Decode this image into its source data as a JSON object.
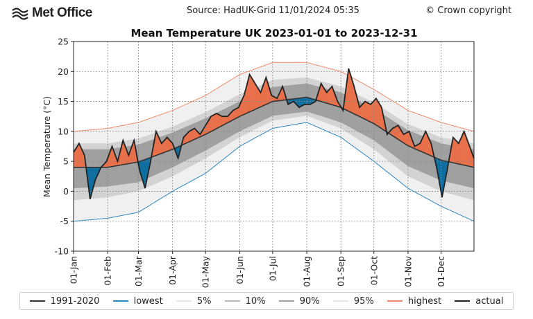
{
  "header": {
    "logo_text": "Met Office",
    "source": "Source: HadUK-Grid 11/01/2024 05:35",
    "copyright": "© Crown copyright"
  },
  "chart_data": {
    "type": "line",
    "title": "Mean Temperature UK 2023-01-01 to 2023-12-31",
    "xlabel": "",
    "ylabel": "Mean Temperature (°C)",
    "ylim": [
      -10,
      25
    ],
    "yticks": [
      -10,
      -5,
      0,
      5,
      10,
      15,
      20,
      25
    ],
    "xlim": [
      "2023-01-01",
      "2023-12-31"
    ],
    "xticks": [
      "01-Jan",
      "01-Feb",
      "01-Mar",
      "01-Apr",
      "01-May",
      "01-Jun",
      "01-Jul",
      "01-Aug",
      "01-Sep",
      "01-Oct",
      "01-Nov",
      "01-Dec"
    ],
    "grid": true,
    "legend_position": "bottom",
    "colors": {
      "mean": "#333333",
      "lowest": "#2a86bf",
      "p5": "#e6e6e6",
      "p10": "#b8b8b8",
      "p90": "#a0a0a0",
      "p95": "#e6e6e6",
      "highest": "#f08a6a",
      "actual": "#222222",
      "above": "#e8704a",
      "below": "#0f6fa0"
    },
    "climatology": {
      "dates": [
        "2023-01-01",
        "2023-02-01",
        "2023-03-01",
        "2023-04-01",
        "2023-05-01",
        "2023-06-01",
        "2023-07-01",
        "2023-08-01",
        "2023-09-01",
        "2023-10-01",
        "2023-11-01",
        "2023-12-01",
        "2023-12-31"
      ],
      "series": [
        {
          "name": "1991-2020",
          "key": "mean",
          "values": [
            4.0,
            4.0,
            4.9,
            7.0,
            9.5,
            12.5,
            15.0,
            15.7,
            14.0,
            11.3,
            7.6,
            5.2,
            4.0
          ]
        },
        {
          "name": "lowest",
          "key": "lowest",
          "values": [
            -5.0,
            -4.5,
            -3.5,
            0.0,
            3.0,
            7.5,
            10.5,
            11.5,
            9.0,
            5.0,
            0.5,
            -2.5,
            -5.0
          ]
        },
        {
          "name": "5%",
          "key": "p5",
          "values": [
            -1.5,
            -1.0,
            0.0,
            2.5,
            5.5,
            9.0,
            11.8,
            12.6,
            10.5,
            7.0,
            2.5,
            0.0,
            -1.5
          ]
        },
        {
          "name": "10%",
          "key": "p10",
          "values": [
            0.5,
            0.8,
            1.5,
            4.0,
            6.8,
            10.0,
            12.6,
            13.3,
            11.5,
            8.5,
            4.2,
            1.8,
            0.5
          ]
        },
        {
          "name": "90%",
          "key": "p90",
          "values": [
            7.0,
            7.0,
            7.8,
            9.8,
            12.2,
            15.0,
            17.4,
            18.0,
            16.5,
            13.8,
            10.2,
            8.0,
            7.0
          ]
        },
        {
          "name": "95%",
          "key": "p95",
          "values": [
            8.0,
            8.0,
            8.8,
            10.8,
            13.2,
            16.2,
            18.6,
            19.0,
            17.5,
            14.8,
            11.2,
            9.0,
            8.0
          ]
        },
        {
          "name": "highest",
          "key": "highest",
          "values": [
            10.0,
            10.5,
            11.5,
            13.5,
            16.0,
            19.5,
            21.5,
            21.5,
            20.0,
            17.0,
            13.5,
            11.5,
            10.0
          ]
        }
      ]
    },
    "actual": {
      "name": "actual",
      "day_of_year": [
        0,
        5,
        10,
        15,
        20,
        25,
        30,
        35,
        40,
        45,
        50,
        55,
        60,
        65,
        70,
        75,
        80,
        85,
        90,
        95,
        100,
        105,
        110,
        115,
        120,
        125,
        130,
        135,
        140,
        145,
        150,
        155,
        160,
        165,
        170,
        175,
        180,
        185,
        190,
        195,
        200,
        205,
        210,
        215,
        220,
        225,
        230,
        235,
        240,
        245,
        250,
        255,
        260,
        265,
        270,
        275,
        280,
        285,
        290,
        295,
        300,
        305,
        310,
        315,
        320,
        325,
        330,
        335,
        340,
        345,
        350,
        355,
        360,
        364
      ],
      "values": [
        6.5,
        8.0,
        6.0,
        -1.3,
        2.0,
        4.0,
        5.0,
        7.5,
        5.0,
        8.5,
        6.0,
        8.5,
        3.5,
        0.5,
        5.0,
        10.0,
        8.0,
        9.0,
        8.0,
        5.5,
        9.0,
        10.0,
        10.5,
        9.5,
        11.0,
        12.5,
        13.0,
        12.5,
        12.5,
        13.5,
        14.0,
        16.0,
        19.5,
        18.0,
        16.5,
        19.0,
        16.0,
        15.5,
        17.5,
        14.5,
        15.0,
        14.0,
        14.5,
        14.5,
        15.0,
        18.0,
        16.5,
        17.5,
        15.0,
        13.5,
        20.5,
        17.5,
        14.0,
        15.0,
        14.5,
        15.5,
        14.0,
        9.5,
        10.5,
        11.0,
        9.5,
        10.0,
        7.5,
        8.0,
        10.0,
        8.0,
        4.0,
        -1.0,
        4.0,
        9.0,
        8.0,
        10.0,
        7.5,
        5.5
      ]
    },
    "legend": [
      "1991-2020",
      "lowest",
      "5%",
      "10%",
      "90%",
      "95%",
      "highest",
      "actual"
    ]
  }
}
